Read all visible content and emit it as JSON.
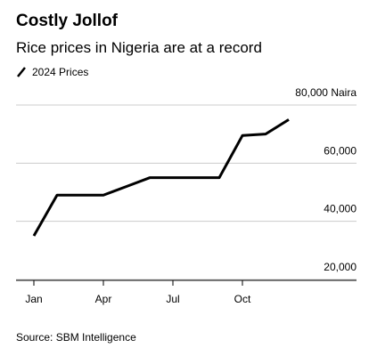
{
  "chart_data": {
    "type": "line",
    "title": "Costly Jollof",
    "subtitle": "Rice prices in Nigeria are at a record",
    "source": "Source: SBM Intelligence",
    "categories": [
      "Jan",
      null,
      null,
      "Apr",
      null,
      null,
      "Jul",
      null,
      null,
      "Oct",
      null,
      null
    ],
    "series": [
      {
        "name": "2024 Prices",
        "color": "#000000",
        "values": [
          35000,
          49000,
          49000,
          49000,
          52000,
          55000,
          55000,
          55000,
          55000,
          69500,
          70000,
          75000
        ]
      }
    ],
    "ylim": [
      20000,
      80000
    ],
    "yticks": [
      {
        "value": 20000,
        "label": "20,000"
      },
      {
        "value": 40000,
        "label": "40,000"
      },
      {
        "value": 60000,
        "label": "60,000"
      },
      {
        "value": 80000,
        "label": "80,000 Naira"
      }
    ],
    "grid": true
  }
}
